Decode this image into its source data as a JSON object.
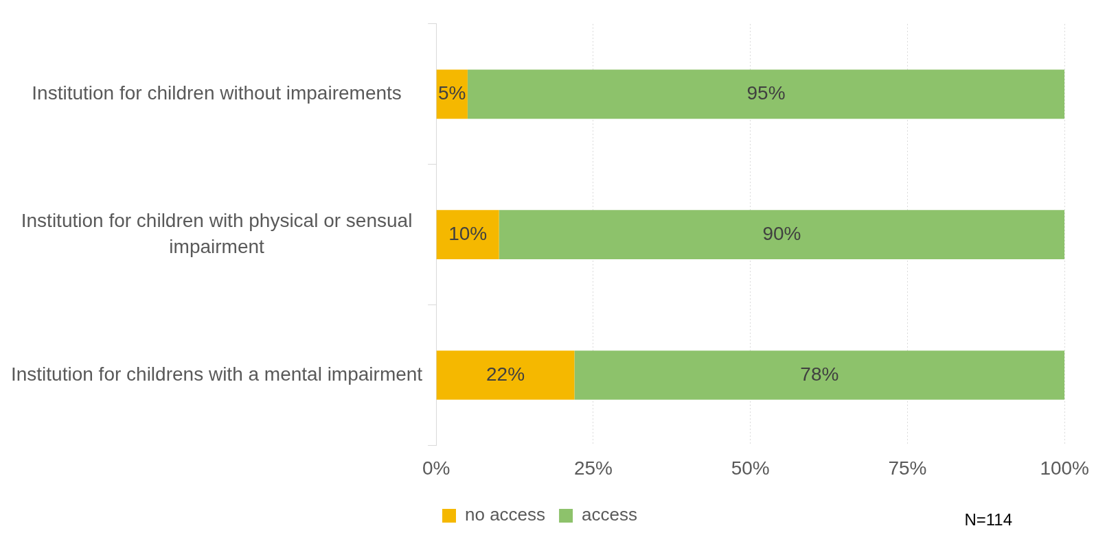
{
  "chart_data": {
    "type": "bar",
    "orientation": "horizontal",
    "stacked": true,
    "categories": [
      "Institution for children without impairements",
      "Institution for children with physical or sensual impairment",
      "Institution for childrens with a mental impairment"
    ],
    "series": [
      {
        "name": "no access",
        "color": "#f5b800",
        "values": [
          5,
          10,
          22
        ],
        "value_labels": [
          "5%",
          "10%",
          "22%"
        ]
      },
      {
        "name": "access",
        "color": "#8dc26b",
        "values": [
          95,
          90,
          78
        ],
        "value_labels": [
          "95%",
          "90%",
          "78%"
        ]
      }
    ],
    "xlim": [
      0,
      100
    ],
    "xticks": [
      {
        "value": 0,
        "label": "0%"
      },
      {
        "value": 25,
        "label": "25%"
      },
      {
        "value": 50,
        "label": "50%"
      },
      {
        "value": 75,
        "label": "75%"
      },
      {
        "value": 100,
        "label": "100%"
      }
    ],
    "grid": "x",
    "legend": "bottom",
    "annotations": [
      "N=114"
    ]
  }
}
